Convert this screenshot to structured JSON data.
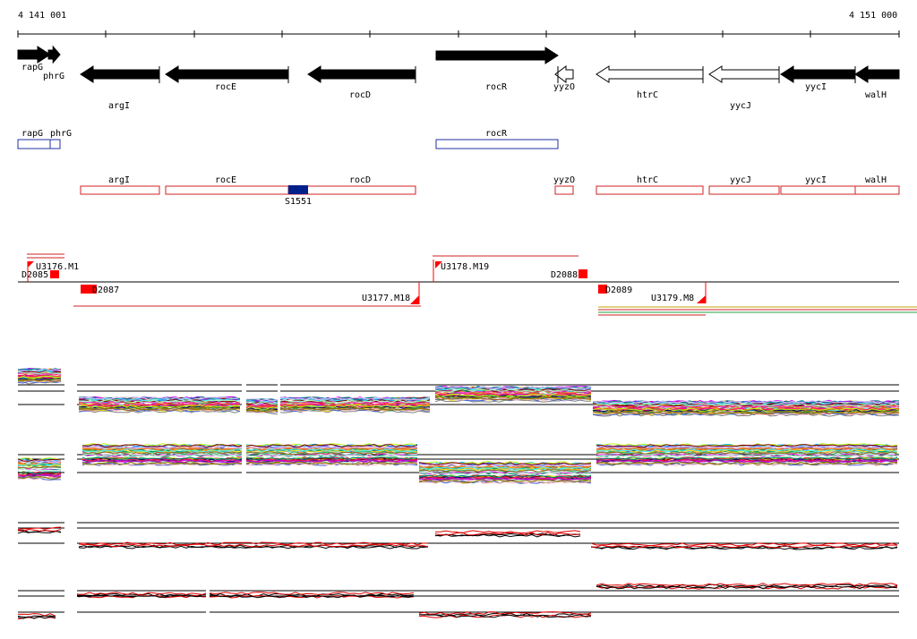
{
  "coordinates": {
    "start": "4 141 001",
    "end": "4 151 000"
  },
  "genes_strand": [
    {
      "name": "rapG",
      "dir": "right",
      "fill": "black"
    },
    {
      "name": "phrG",
      "dir": "right",
      "fill": "black"
    },
    {
      "name": "argI",
      "dir": "left",
      "fill": "black"
    },
    {
      "name": "rocE",
      "dir": "left",
      "fill": "black"
    },
    {
      "name": "rocD",
      "dir": "left",
      "fill": "black"
    },
    {
      "name": "rocR",
      "dir": "right",
      "fill": "black"
    },
    {
      "name": "yyzO",
      "dir": "left",
      "fill": "white"
    },
    {
      "name": "htrC",
      "dir": "left",
      "fill": "white"
    },
    {
      "name": "yycJ",
      "dir": "left",
      "fill": "white"
    },
    {
      "name": "yycI",
      "dir": "left",
      "fill": "black"
    },
    {
      "name": "walH",
      "dir": "left",
      "fill": "black"
    }
  ],
  "genes_blue": [
    "rapG",
    "phrG",
    "rocR"
  ],
  "genes_red": [
    "argI",
    "rocE",
    "rocD",
    "yyzO",
    "htrC",
    "yycJ",
    "yycI",
    "walH"
  ],
  "feature_blue_box": "S1551",
  "transcript_labels": {
    "u3176": "U3176.M1",
    "d2085": "D2085",
    "d2087": "D2087",
    "u3177": "U3177.M18",
    "u3178": "U3178.M19",
    "d2088": "D2088",
    "d2089": "D2089",
    "u3179": "U3179.M8"
  },
  "colors": {
    "gene_black": "#000000",
    "blue_box": "#2030a0",
    "red_box": "#d02020",
    "feature_fill": "#00208a",
    "marker_red": "#ff0000",
    "profile_black": "#000000",
    "profile_red": "#e00000"
  }
}
